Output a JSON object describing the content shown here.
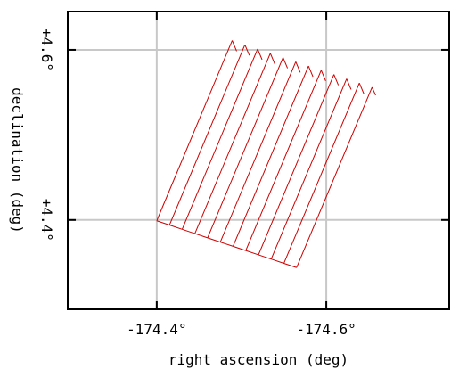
{
  "chart_data": {
    "type": "scatter",
    "xlabel": "right ascension (deg)",
    "ylabel": "declination (deg)",
    "xlim": [
      -174.295,
      -174.745
    ],
    "ylim": [
      4.295,
      4.645
    ],
    "grid": true,
    "xticks": [
      {
        "value": -174.4,
        "label": "-174.4°"
      },
      {
        "value": -174.6,
        "label": "-174.6°"
      }
    ],
    "yticks": [
      {
        "value": 4.4,
        "label": "+4.4°"
      },
      {
        "value": 4.6,
        "label": "+4.6°"
      }
    ],
    "series": [
      {
        "color": "#cc0000",
        "strips": [
          {
            "top": [
              -174.489,
              4.611
            ],
            "bottom": [
              -174.4,
              4.399
            ]
          },
          {
            "top": [
              -174.504,
              4.606
            ],
            "bottom": [
              -174.415,
              4.394
            ]
          },
          {
            "top": [
              -174.519,
              4.601
            ],
            "bottom": [
              -174.43,
              4.389
            ]
          },
          {
            "top": [
              -174.534,
              4.596
            ],
            "bottom": [
              -174.445,
              4.384
            ]
          },
          {
            "top": [
              -174.549,
              4.591
            ],
            "bottom": [
              -174.46,
              4.379
            ]
          },
          {
            "top": [
              -174.564,
              4.586
            ],
            "bottom": [
              -174.475,
              4.374
            ]
          },
          {
            "top": [
              -174.579,
              4.581
            ],
            "bottom": [
              -174.49,
              4.369
            ]
          },
          {
            "top": [
              -174.594,
              4.576
            ],
            "bottom": [
              -174.505,
              4.364
            ]
          },
          {
            "top": [
              -174.609,
              4.571
            ],
            "bottom": [
              -174.52,
              4.359
            ]
          },
          {
            "top": [
              -174.624,
              4.566
            ],
            "bottom": [
              -174.535,
              4.354
            ]
          },
          {
            "top": [
              -174.639,
              4.561
            ],
            "bottom": [
              -174.55,
              4.349
            ]
          },
          {
            "top": [
              -174.654,
              4.556
            ],
            "bottom": [
              -174.565,
              4.344
            ]
          }
        ]
      }
    ]
  }
}
